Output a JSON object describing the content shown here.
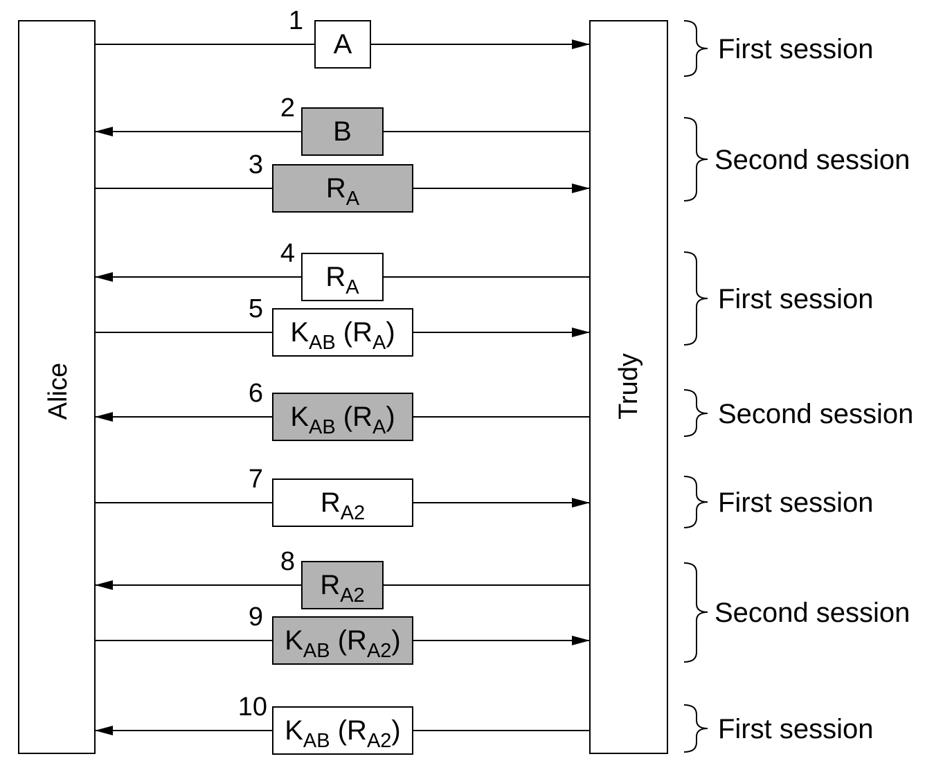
{
  "parties": {
    "left": "Alice",
    "right": "Trudy"
  },
  "colors": {
    "line": "#000000",
    "box_white": "#ffffff",
    "box_gray": "#b3b3b3"
  },
  "messages": [
    {
      "step": "1",
      "direction": "to-right",
      "shade": "white",
      "parts": [
        {
          "t": "A",
          "sub": ""
        }
      ]
    },
    {
      "step": "2",
      "direction": "to-left",
      "shade": "gray",
      "parts": [
        {
          "t": "B",
          "sub": ""
        }
      ]
    },
    {
      "step": "3",
      "direction": "to-right",
      "shade": "gray",
      "parts": [
        {
          "t": "R",
          "sub": "A"
        }
      ]
    },
    {
      "step": "4",
      "direction": "to-left",
      "shade": "white",
      "parts": [
        {
          "t": "R",
          "sub": "A"
        }
      ]
    },
    {
      "step": "5",
      "direction": "to-right",
      "shade": "white",
      "parts": [
        {
          "t": "K",
          "sub": "AB"
        },
        {
          "t": " (R",
          "sub": "A"
        },
        {
          "t": ")",
          "sub": ""
        }
      ]
    },
    {
      "step": "6",
      "direction": "to-left",
      "shade": "gray",
      "parts": [
        {
          "t": "K",
          "sub": "AB"
        },
        {
          "t": " (R",
          "sub": "A"
        },
        {
          "t": ")",
          "sub": ""
        }
      ]
    },
    {
      "step": "7",
      "direction": "to-right",
      "shade": "white",
      "parts": [
        {
          "t": "R",
          "sub": "A2"
        }
      ]
    },
    {
      "step": "8",
      "direction": "to-left",
      "shade": "gray",
      "parts": [
        {
          "t": "R",
          "sub": "A2"
        }
      ]
    },
    {
      "step": "9",
      "direction": "to-right",
      "shade": "gray",
      "parts": [
        {
          "t": "K",
          "sub": "AB"
        },
        {
          "t": " (R",
          "sub": "A2"
        },
        {
          "t": ")",
          "sub": ""
        }
      ]
    },
    {
      "step": "10",
      "direction": "to-left",
      "shade": "white",
      "parts": [
        {
          "t": "K",
          "sub": "AB"
        },
        {
          "t": " (R",
          "sub": "A2"
        },
        {
          "t": ")",
          "sub": ""
        }
      ]
    }
  ],
  "sessions": [
    {
      "label": "First session",
      "steps": [
        1
      ]
    },
    {
      "label": "Second session",
      "steps": [
        2,
        3
      ]
    },
    {
      "label": "First session",
      "steps": [
        4,
        5
      ]
    },
    {
      "label": "Second session",
      "steps": [
        6
      ]
    },
    {
      "label": "First session",
      "steps": [
        7
      ]
    },
    {
      "label": "Second session",
      "steps": [
        8,
        9
      ]
    },
    {
      "label": "First session",
      "steps": [
        10
      ]
    }
  ]
}
